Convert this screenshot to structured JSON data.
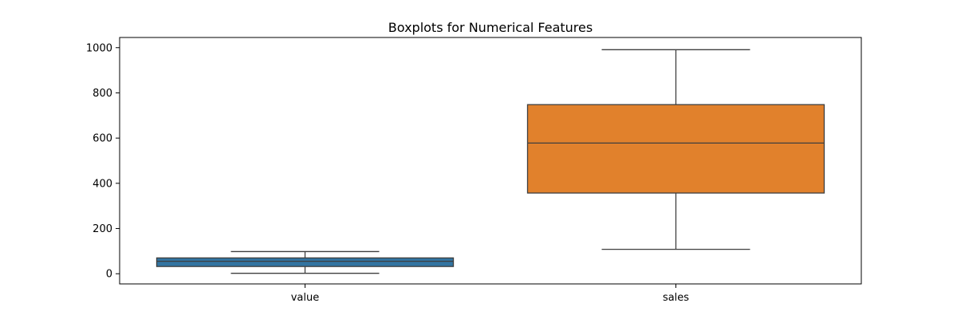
{
  "chart_data": {
    "type": "boxplot",
    "title": "Boxplots for Numerical Features",
    "xlabel": "",
    "ylabel": "",
    "categories": [
      "value",
      "sales"
    ],
    "ylim": [
      -45,
      1045
    ],
    "yticks": [
      0,
      200,
      400,
      600,
      800,
      1000
    ],
    "grid": false,
    "series": [
      {
        "category": "value",
        "whisker_low": 2,
        "q1": 32,
        "median": 55,
        "q3": 70,
        "whisker_high": 98,
        "color": "#3274a1"
      },
      {
        "category": "sales",
        "whisker_low": 108,
        "q1": 357,
        "median": 578,
        "q3": 748,
        "whisker_high": 991,
        "color": "#e1812c"
      }
    ]
  }
}
